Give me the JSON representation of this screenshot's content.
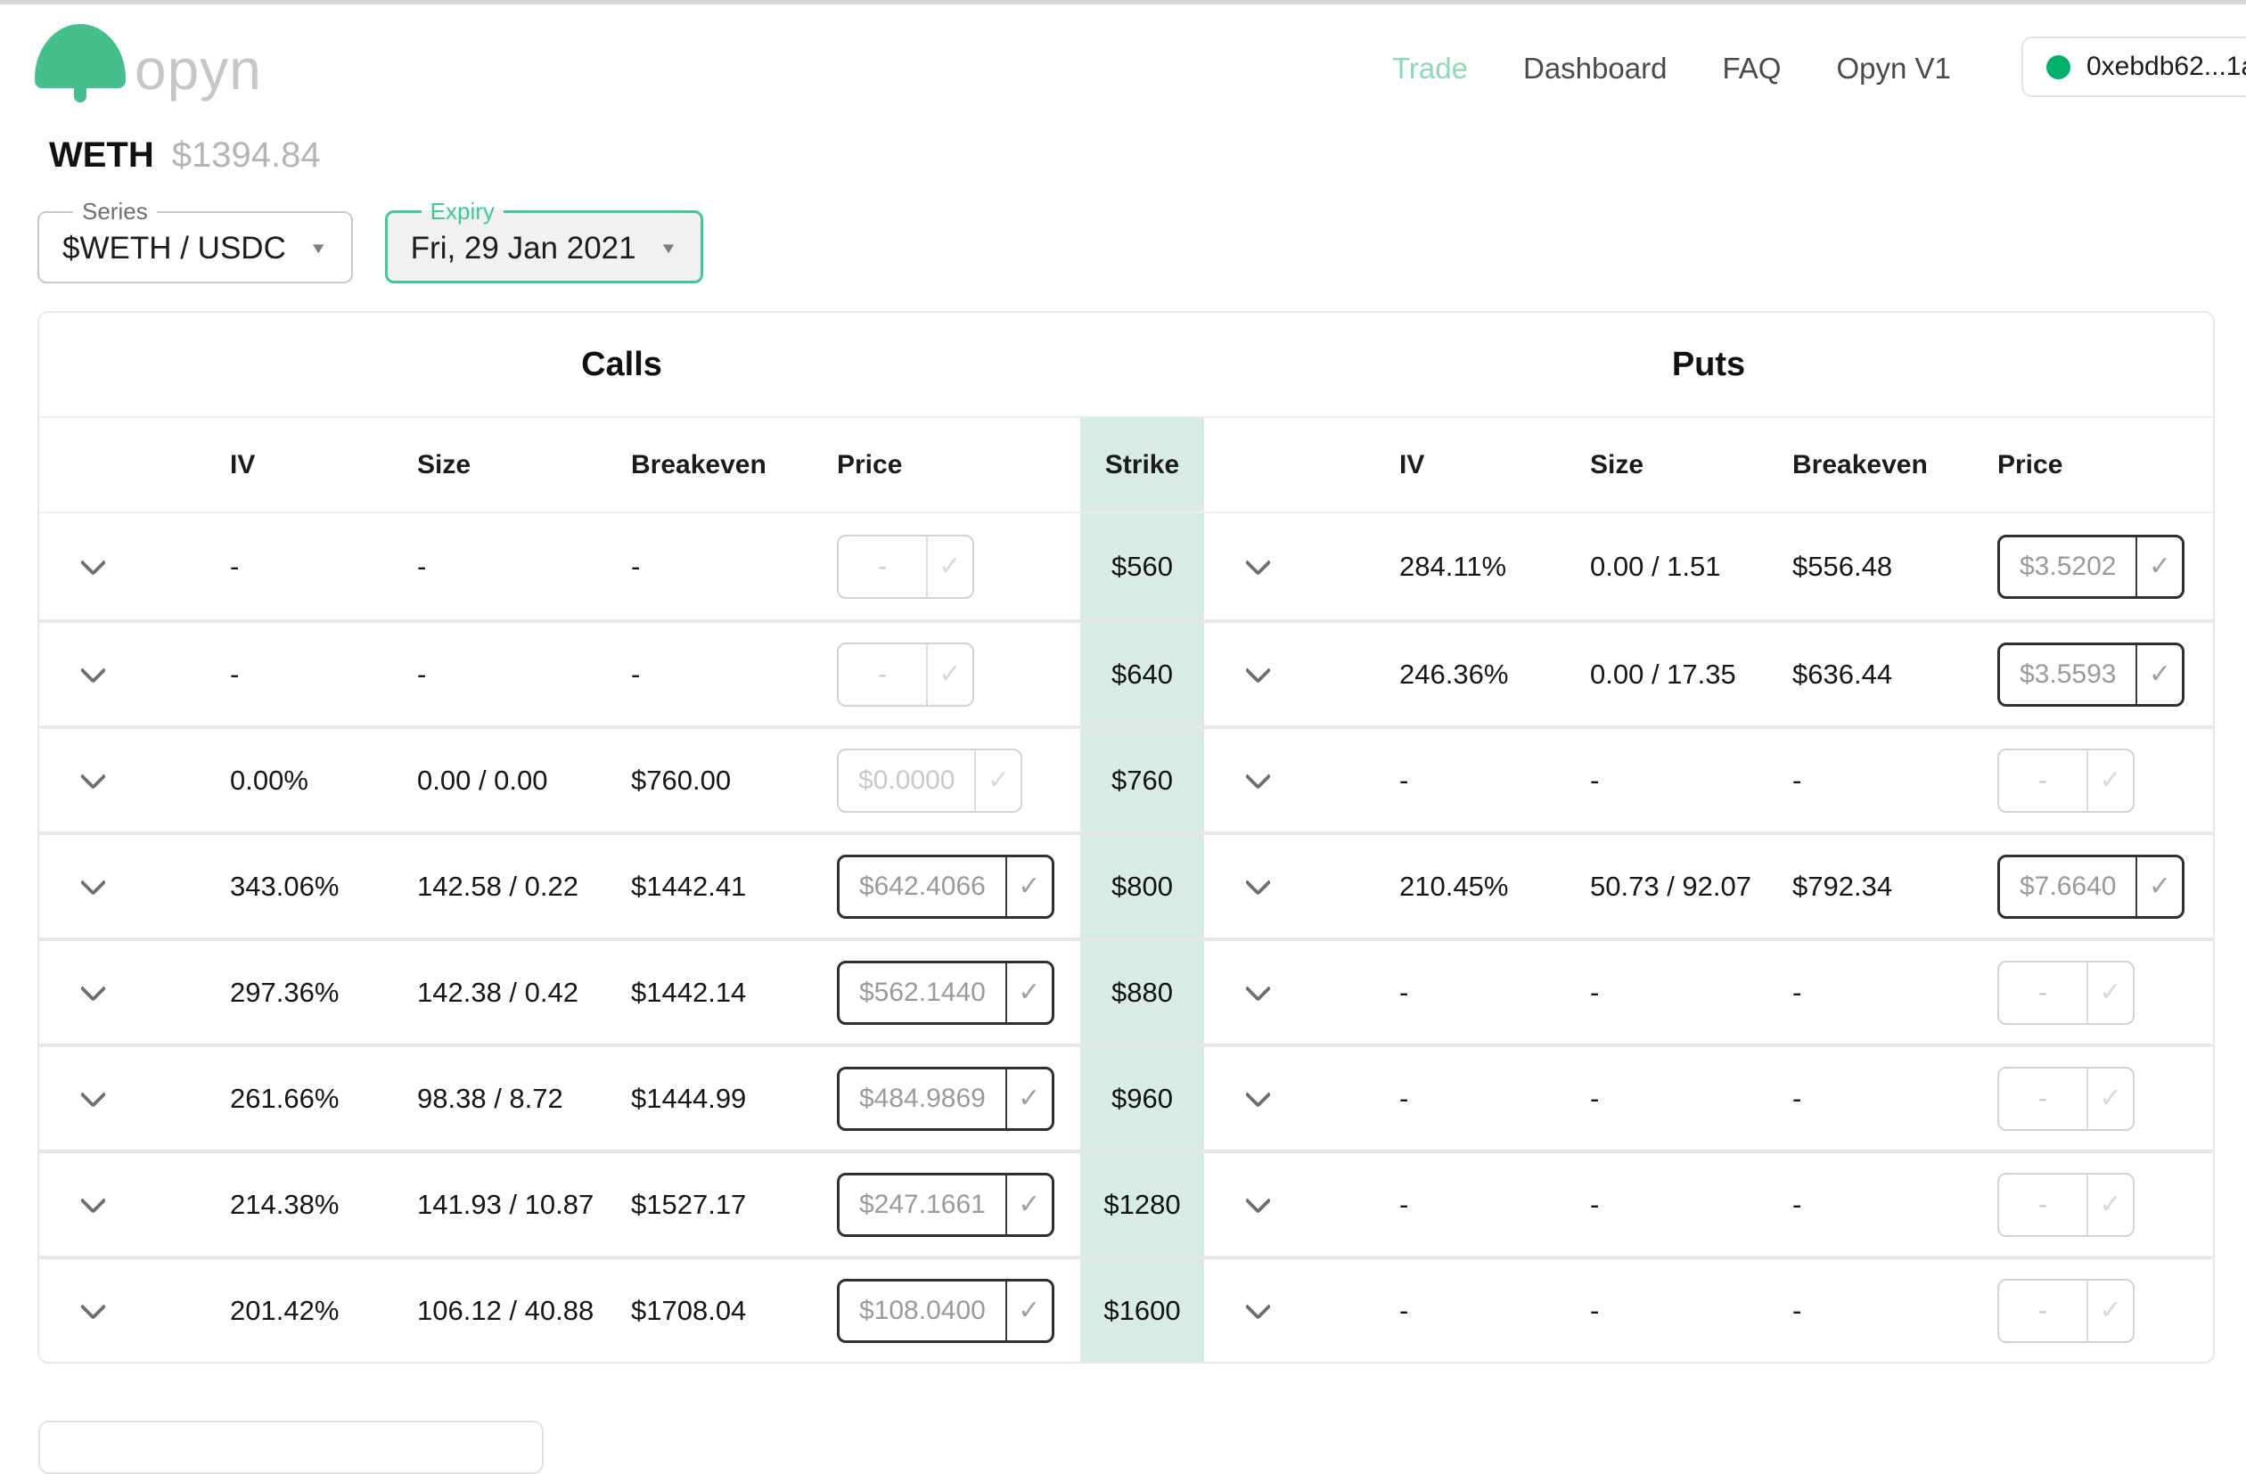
{
  "colors": {
    "logo_green": "#47be8e",
    "nav_active_green": "#8fd8b7",
    "wallet_dot_green": "#00b269",
    "expiry_teal": "#43c6a0",
    "strike_column_bg": "#d8ece3"
  },
  "icons": {
    "check": "✓",
    "caret_down": "▼",
    "chevron_down": "v",
    "wallet_status_dot": "green-circle"
  },
  "header": {
    "logo_text": "opyn",
    "nav": [
      {
        "label": "Trade",
        "active": true
      },
      {
        "label": "Dashboard",
        "active": false
      },
      {
        "label": "FAQ",
        "active": false
      },
      {
        "label": "Opyn V1",
        "active": false
      }
    ],
    "wallet": {
      "address": "0xebdb62...1a"
    }
  },
  "asset": {
    "symbol": "WETH",
    "price": "$1394.84"
  },
  "filters": {
    "series": {
      "label": "Series",
      "value": "$WETH / USDC"
    },
    "expiry": {
      "label": "Expiry",
      "value": "Fri, 29 Jan 2021"
    }
  },
  "table": {
    "calls_title": "Calls",
    "puts_title": "Puts",
    "columns": {
      "iv": "IV",
      "size": "Size",
      "breakeven": "Breakeven",
      "price": "Price",
      "strike": "Strike"
    },
    "rows": [
      {
        "strike": "$560",
        "call": {
          "iv": "-",
          "size": "-",
          "breakeven": "-",
          "price": "-",
          "enabled": false
        },
        "put": {
          "iv": "284.11%",
          "size": "0.00 / 1.51",
          "breakeven": "$556.48",
          "price": "$3.5202",
          "enabled": true
        }
      },
      {
        "strike": "$640",
        "call": {
          "iv": "-",
          "size": "-",
          "breakeven": "-",
          "price": "-",
          "enabled": false
        },
        "put": {
          "iv": "246.36%",
          "size": "0.00 / 17.35",
          "breakeven": "$636.44",
          "price": "$3.5593",
          "enabled": true
        }
      },
      {
        "strike": "$760",
        "call": {
          "iv": "0.00%",
          "size": "0.00 / 0.00",
          "breakeven": "$760.00",
          "price": "$0.0000",
          "enabled": false
        },
        "put": {
          "iv": "-",
          "size": "-",
          "breakeven": "-",
          "price": "-",
          "enabled": false
        }
      },
      {
        "strike": "$800",
        "call": {
          "iv": "343.06%",
          "size": "142.58 / 0.22",
          "breakeven": "$1442.41",
          "price": "$642.4066",
          "enabled": true
        },
        "put": {
          "iv": "210.45%",
          "size": "50.73 / 92.07",
          "breakeven": "$792.34",
          "price": "$7.6640",
          "enabled": true
        }
      },
      {
        "strike": "$880",
        "call": {
          "iv": "297.36%",
          "size": "142.38 / 0.42",
          "breakeven": "$1442.14",
          "price": "$562.1440",
          "enabled": true
        },
        "put": {
          "iv": "-",
          "size": "-",
          "breakeven": "-",
          "price": "-",
          "enabled": false
        }
      },
      {
        "strike": "$960",
        "call": {
          "iv": "261.66%",
          "size": "98.38 / 8.72",
          "breakeven": "$1444.99",
          "price": "$484.9869",
          "enabled": true
        },
        "put": {
          "iv": "-",
          "size": "-",
          "breakeven": "-",
          "price": "-",
          "enabled": false
        }
      },
      {
        "strike": "$1280",
        "call": {
          "iv": "214.38%",
          "size": "141.93 / 10.87",
          "breakeven": "$1527.17",
          "price": "$247.1661",
          "enabled": true
        },
        "put": {
          "iv": "-",
          "size": "-",
          "breakeven": "-",
          "price": "-",
          "enabled": false
        }
      },
      {
        "strike": "$1600",
        "call": {
          "iv": "201.42%",
          "size": "106.12 / 40.88",
          "breakeven": "$1708.04",
          "price": "$108.0400",
          "enabled": true
        },
        "put": {
          "iv": "-",
          "size": "-",
          "breakeven": "-",
          "price": "-",
          "enabled": false
        }
      }
    ]
  }
}
